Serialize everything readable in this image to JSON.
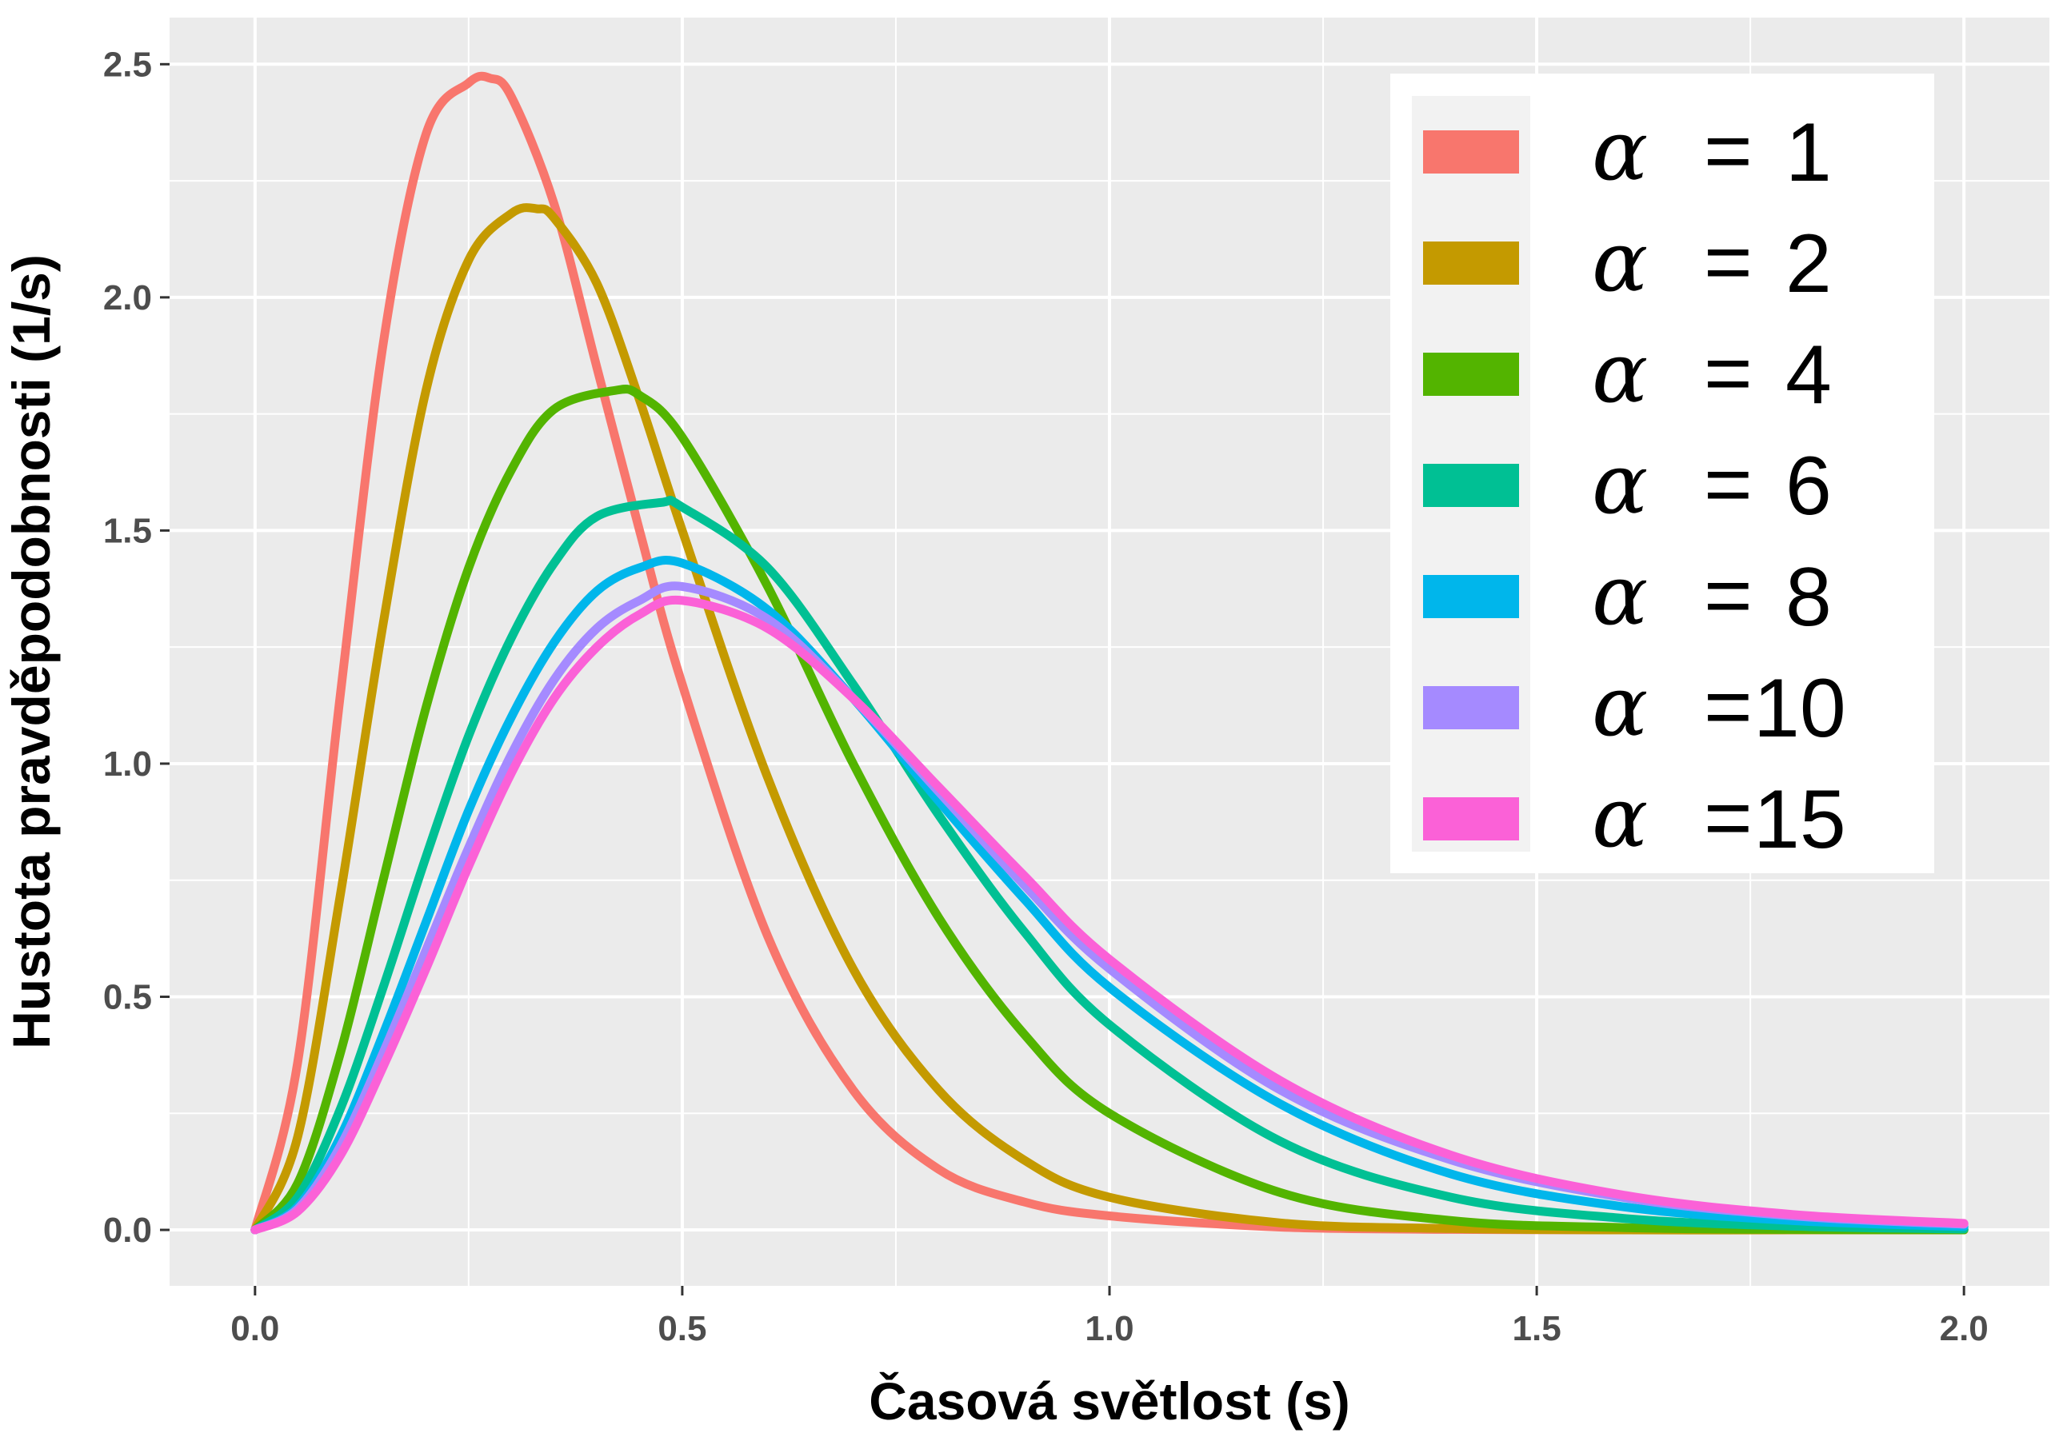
{
  "chart_data": {
    "type": "line",
    "xlabel": "Časová světlost (s)",
    "ylabel": "Hustota pravděpodobnosti (1/s)",
    "xlim": [
      -0.1,
      2.1
    ],
    "ylim": [
      -0.12,
      2.6
    ],
    "x_ticks": [
      0.0,
      0.5,
      1.0,
      1.5,
      2.0
    ],
    "x_tick_labels": [
      "0.0",
      "0.5",
      "1.0",
      "1.5",
      "2.0"
    ],
    "y_ticks": [
      0.0,
      0.5,
      1.0,
      1.5,
      2.0,
      2.5
    ],
    "y_tick_labels": [
      "0.0",
      "0.5",
      "1.0",
      "1.5",
      "2.0",
      "2.5"
    ],
    "grid": true,
    "legend_position": "top-right",
    "x_range": [
      0.0,
      2.0
    ],
    "series": [
      {
        "name": "α = 1",
        "alpha_label": "α",
        "value_label": "1",
        "color": "#F8766D",
        "x": [
          0.0,
          0.05,
          0.1,
          0.15,
          0.2,
          0.25,
          0.275,
          0.3,
          0.35,
          0.4,
          0.45,
          0.5,
          0.6,
          0.7,
          0.8,
          0.9,
          1.0,
          1.2,
          1.4,
          1.6,
          1.8,
          2.0
        ],
        "y": [
          0.0,
          0.36,
          1.15,
          1.9,
          2.35,
          2.46,
          2.47,
          2.43,
          2.2,
          1.85,
          1.5,
          1.17,
          0.63,
          0.3,
          0.13,
          0.06,
          0.03,
          0.006,
          0.001,
          0.0,
          0.0,
          0.0
        ]
      },
      {
        "name": "α = 2",
        "alpha_label": "α",
        "value_label": "2",
        "color": "#C49A00",
        "x": [
          0.0,
          0.05,
          0.1,
          0.15,
          0.2,
          0.25,
          0.3,
          0.33,
          0.35,
          0.4,
          0.45,
          0.5,
          0.6,
          0.7,
          0.8,
          0.9,
          1.0,
          1.2,
          1.4,
          1.6,
          1.8,
          2.0
        ],
        "y": [
          0.0,
          0.2,
          0.72,
          1.3,
          1.8,
          2.08,
          2.18,
          2.19,
          2.17,
          2.03,
          1.78,
          1.5,
          0.97,
          0.56,
          0.3,
          0.15,
          0.07,
          0.015,
          0.003,
          0.0,
          0.0,
          0.0
        ]
      },
      {
        "name": "α = 4",
        "alpha_label": "α",
        "value_label": "4",
        "color": "#53B400",
        "x": [
          0.0,
          0.05,
          0.1,
          0.15,
          0.2,
          0.25,
          0.3,
          0.35,
          0.42,
          0.45,
          0.5,
          0.6,
          0.7,
          0.8,
          0.9,
          1.0,
          1.2,
          1.4,
          1.6,
          1.8,
          2.0
        ],
        "y": [
          0.0,
          0.1,
          0.38,
          0.75,
          1.12,
          1.42,
          1.63,
          1.76,
          1.8,
          1.79,
          1.7,
          1.38,
          1.0,
          0.67,
          0.42,
          0.25,
          0.08,
          0.02,
          0.005,
          0.001,
          0.0
        ]
      },
      {
        "name": "α = 6",
        "alpha_label": "α",
        "value_label": "6",
        "color": "#00C094",
        "x": [
          0.0,
          0.05,
          0.1,
          0.15,
          0.2,
          0.25,
          0.3,
          0.35,
          0.4,
          0.475,
          0.5,
          0.6,
          0.7,
          0.8,
          0.9,
          1.0,
          1.2,
          1.4,
          1.6,
          1.8,
          2.0
        ],
        "y": [
          0.0,
          0.07,
          0.26,
          0.52,
          0.8,
          1.06,
          1.27,
          1.43,
          1.53,
          1.56,
          1.55,
          1.42,
          1.17,
          0.89,
          0.64,
          0.44,
          0.19,
          0.07,
          0.025,
          0.008,
          0.002
        ]
      },
      {
        "name": "α = 8",
        "alpha_label": "α",
        "value_label": "8",
        "color": "#00B6EB",
        "x": [
          0.0,
          0.05,
          0.1,
          0.15,
          0.2,
          0.25,
          0.3,
          0.35,
          0.4,
          0.45,
          0.5,
          0.6,
          0.7,
          0.8,
          0.9,
          1.0,
          1.2,
          1.4,
          1.6,
          1.8,
          2.0
        ],
        "y": [
          0.0,
          0.05,
          0.2,
          0.42,
          0.66,
          0.9,
          1.1,
          1.26,
          1.37,
          1.42,
          1.43,
          1.33,
          1.14,
          0.92,
          0.71,
          0.52,
          0.27,
          0.12,
          0.05,
          0.02,
          0.007
        ]
      },
      {
        "name": "α =10",
        "alpha_label": "α",
        "value_label": "10",
        "color": "#A58AFF",
        "x": [
          0.0,
          0.05,
          0.1,
          0.15,
          0.2,
          0.25,
          0.3,
          0.35,
          0.4,
          0.45,
          0.5,
          0.6,
          0.7,
          0.8,
          0.9,
          1.0,
          1.2,
          1.4,
          1.6,
          1.8,
          2.0
        ],
        "y": [
          0.0,
          0.045,
          0.18,
          0.38,
          0.6,
          0.82,
          1.02,
          1.18,
          1.29,
          1.35,
          1.38,
          1.31,
          1.14,
          0.94,
          0.74,
          0.56,
          0.3,
          0.15,
          0.07,
          0.03,
          0.012
        ]
      },
      {
        "name": "α =15",
        "alpha_label": "α",
        "value_label": "15",
        "color": "#FB61D7",
        "x": [
          0.0,
          0.05,
          0.1,
          0.15,
          0.2,
          0.25,
          0.3,
          0.35,
          0.4,
          0.45,
          0.5,
          0.6,
          0.7,
          0.8,
          0.9,
          1.0,
          1.2,
          1.4,
          1.6,
          1.8,
          2.0
        ],
        "y": [
          0.0,
          0.04,
          0.16,
          0.35,
          0.56,
          0.78,
          0.98,
          1.14,
          1.25,
          1.32,
          1.35,
          1.29,
          1.14,
          0.95,
          0.76,
          0.58,
          0.32,
          0.16,
          0.075,
          0.033,
          0.014
        ]
      }
    ]
  }
}
